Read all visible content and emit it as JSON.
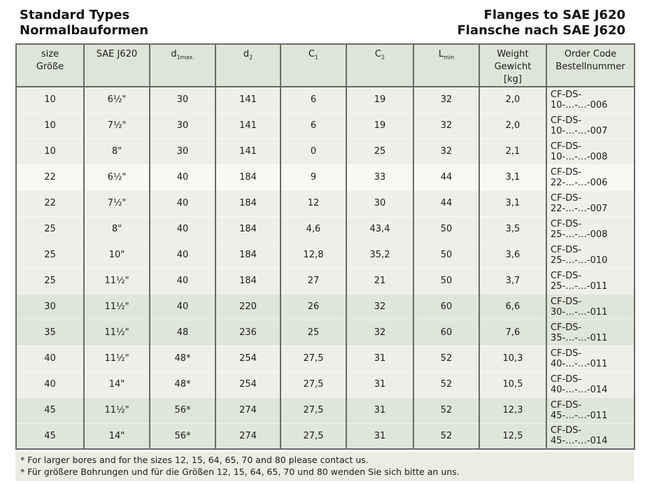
{
  "titles": {
    "left": [
      "Standard Types",
      "Normalbauformen"
    ],
    "right": [
      "Flanges to SAE J620",
      "Flansche nach SAE J620"
    ]
  },
  "table": {
    "columns": [
      {
        "id": "size",
        "lines": [
          "size",
          "Größe"
        ]
      },
      {
        "id": "sae",
        "lines": [
          "SAE J620"
        ]
      },
      {
        "id": "d1max",
        "base": "d",
        "sub": "1max."
      },
      {
        "id": "d2",
        "base": "d",
        "sub": "2"
      },
      {
        "id": "c1",
        "base": "C",
        "sub": "1"
      },
      {
        "id": "c2",
        "base": "C",
        "sub": "2"
      },
      {
        "id": "lmin",
        "base": "L",
        "sub": "min"
      },
      {
        "id": "weight",
        "lines": [
          "Weight",
          "Gewicht",
          "[kg]"
        ]
      },
      {
        "id": "order",
        "lines": [
          "Order Code",
          "Bestellnummer"
        ]
      }
    ],
    "rows": [
      {
        "shade": "a",
        "cells": [
          "10",
          "6½\"",
          "30",
          "141",
          "6",
          "19",
          "32",
          "2,0",
          "CF-DS-10-…-…-006"
        ]
      },
      {
        "shade": "a",
        "cells": [
          "10",
          "7½\"",
          "30",
          "141",
          "6",
          "19",
          "32",
          "2,0",
          "CF-DS-10-…-…-007"
        ]
      },
      {
        "shade": "a",
        "cells": [
          "10",
          "8\"",
          "30",
          "141",
          "0",
          "25",
          "32",
          "2,1",
          "CF-DS-10-…-…-008"
        ]
      },
      {
        "shade": "b",
        "cells": [
          "22",
          "6½\"",
          "40",
          "184",
          "9",
          "33",
          "44",
          "3,1",
          "CF-DS-22-…-…-006"
        ]
      },
      {
        "shade": "a",
        "cells": [
          "22",
          "7½\"",
          "40",
          "184",
          "12",
          "30",
          "44",
          "3,1",
          "CF-DS-22-…-…-007"
        ]
      },
      {
        "shade": "a",
        "cells": [
          "25",
          "8\"",
          "40",
          "184",
          "4,6",
          "43,4",
          "50",
          "3,5",
          "CF-DS-25-…-…-008"
        ]
      },
      {
        "shade": "a",
        "cells": [
          "25",
          "10\"",
          "40",
          "184",
          "12,8",
          "35,2",
          "50",
          "3,6",
          "CF-DS-25-…-…-010"
        ]
      },
      {
        "shade": "a",
        "cells": [
          "25",
          "11½\"",
          "40",
          "184",
          "27",
          "21",
          "50",
          "3,7",
          "CF-DS-25-…-…-011"
        ]
      },
      {
        "shade": "c",
        "cells": [
          "30",
          "11½\"",
          "40",
          "220",
          "26",
          "32",
          "60",
          "6,6",
          "CF-DS-30-…-…-011"
        ]
      },
      {
        "shade": "c",
        "cells": [
          "35",
          "11½\"",
          "48",
          "236",
          "25",
          "32",
          "60",
          "7,6",
          "CF-DS-35-…-…-011"
        ]
      },
      {
        "shade": "a",
        "cells": [
          "40",
          "11½\"",
          "48*",
          "254",
          "27,5",
          "31",
          "52",
          "10,3",
          "CF-DS-40-…-…-011"
        ]
      },
      {
        "shade": "a",
        "cells": [
          "40",
          "14\"",
          "48*",
          "254",
          "27,5",
          "31",
          "52",
          "10,5",
          "CF-DS-40-…-…-014"
        ]
      },
      {
        "shade": "c",
        "cells": [
          "45",
          "11½\"",
          "56*",
          "274",
          "27,5",
          "31",
          "52",
          "12,3",
          "CF-DS-45-…-…-011"
        ]
      },
      {
        "shade": "c",
        "cells": [
          "45",
          "14\"",
          "56*",
          "274",
          "27,5",
          "31",
          "52",
          "12,5",
          "CF-DS-45-…-…-014"
        ]
      }
    ]
  },
  "footnotes": [
    "* For larger bores and for the sizes 12, 15, 64, 65, 70 and 80 please contact us.",
    "* Für größere Bohrungen und für die Größen 12, 15, 64, 65, 70 und 80 wenden Sie sich bitte an uns."
  ],
  "colors": {
    "row_shade_light": "#edf0e9",
    "row_shade_bright": "#f7f9f4",
    "row_shade_dark": "#e0e5d9",
    "header_background": "#dfe4d8",
    "footnote_background": "#e9ede2",
    "table_border": "#676b66",
    "text": "#1c1c1c"
  }
}
